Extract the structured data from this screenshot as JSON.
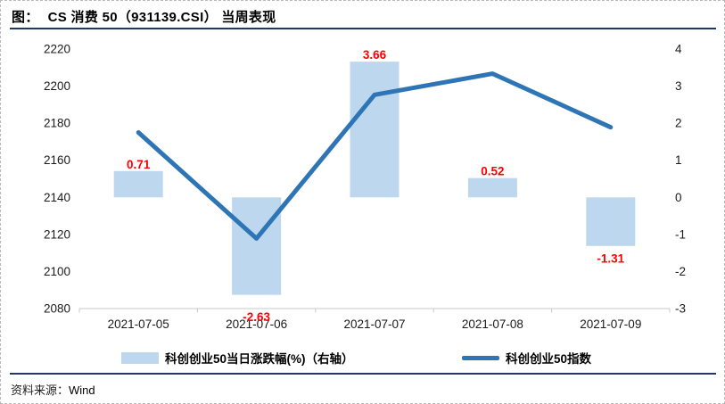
{
  "header": {
    "figure_label": "图：",
    "title": "CS 消费 50（931139.CSI） 当周表现"
  },
  "chart_data": {
    "type": "combo-bar-line",
    "title": "CS 消费 50（931139.CSI） 当周表现",
    "categories": [
      "2021-07-05",
      "2021-07-06",
      "2021-07-07",
      "2021-07-08",
      "2021-07-09"
    ],
    "series": [
      {
        "name": "科创创业50当日涨跌幅(%)（右轴）",
        "type": "bar",
        "axis": "right",
        "values": [
          0.71,
          -2.63,
          3.66,
          0.52,
          -1.31
        ],
        "labels": [
          "0.71",
          "-2.63",
          "3.66",
          "0.52",
          "-1.31"
        ],
        "color": "#BDD7EE",
        "label_color": "#FF0000"
      },
      {
        "name": "科创创业50指数",
        "type": "line",
        "axis": "left",
        "values": [
          2175.0,
          2117.8,
          2195.3,
          2206.7,
          2177.8
        ],
        "color": "#2E75B6"
      }
    ],
    "left_axis": {
      "min": 2080,
      "max": 2220,
      "step": 20,
      "ticks": [
        2220,
        2200,
        2180,
        2160,
        2140,
        2120,
        2100,
        2080
      ]
    },
    "right_axis": {
      "min": -3,
      "max": 4,
      "step": 1,
      "ticks": [
        4,
        3,
        2,
        1,
        0,
        -1,
        -2,
        -3
      ]
    },
    "grid": false,
    "legend_position": "bottom",
    "axis_line_color": "#C9C9C9"
  },
  "legend": {
    "bar_label": "科创创业50当日涨跌幅(%)（右轴）",
    "line_label": "科创创业50指数"
  },
  "footer": {
    "source_label": "资料来源：",
    "source_value": "Wind"
  }
}
